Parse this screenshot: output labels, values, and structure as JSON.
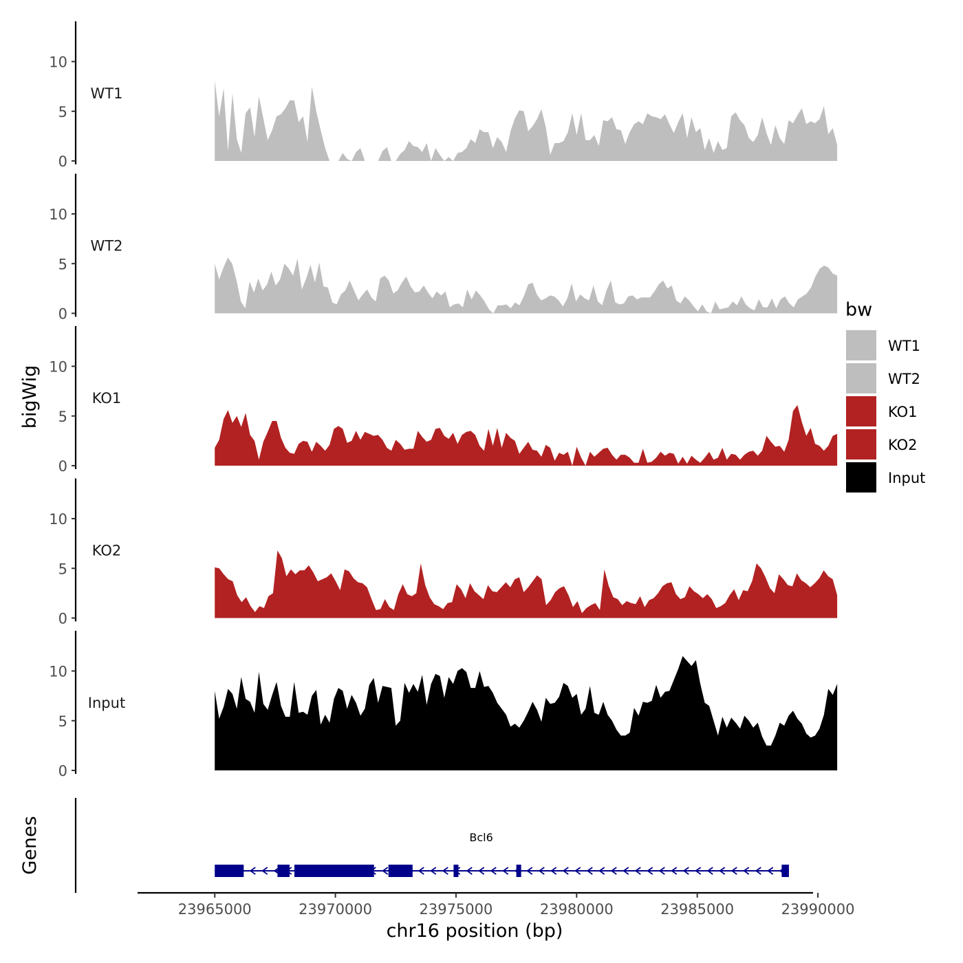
{
  "chart_data": {
    "type": "area",
    "title": "",
    "xlabel": "chr16 position (bp)",
    "ylabel": "bigWig",
    "genes_ylabel": "Genes",
    "xlim": [
      23961800,
      23989800
    ],
    "ylim": [
      0,
      14
    ],
    "x_ticks": [
      23965000,
      23970000,
      23975000,
      23980000,
      23985000,
      23990000
    ],
    "x_tick_labels": [
      "23965000",
      "23970000",
      "23975000",
      "23980000",
      "23985000",
      "23990000"
    ],
    "y_ticks": [
      0,
      5,
      10
    ],
    "y_tick_labels": [
      "0",
      "5",
      "10"
    ],
    "region": [
      23965000,
      23990800
    ],
    "legend": {
      "title": "bw",
      "position": "right",
      "entries": [
        {
          "label": "WT1",
          "color": "#bebebe"
        },
        {
          "label": "WT2",
          "color": "#bebebe"
        },
        {
          "label": "KO1",
          "color": "#b22222"
        },
        {
          "label": "KO2",
          "color": "#b22222"
        },
        {
          "label": "Input",
          "color": "#000000"
        }
      ]
    },
    "series": [
      {
        "name": "WT1",
        "color": "#bebebe",
        "values": [
          8.1,
          4.5,
          7.3,
          1.0,
          6.8,
          2.2,
          0.8,
          4.8,
          5.4,
          2.4,
          6.5,
          4.3,
          2.1,
          3.1,
          4.5,
          4.7,
          5.3,
          6.1,
          6.1,
          3.9,
          4.5,
          1.9,
          7.5,
          5.0,
          3.1,
          1.3,
          0,
          0,
          0,
          0.8,
          0.2,
          0,
          0.9,
          1.3,
          0,
          0,
          0,
          0,
          1.0,
          1.4,
          0,
          0,
          0.7,
          1.1,
          2.0,
          1.5,
          1.4,
          0.9,
          1.8,
          0,
          1.3,
          0.6,
          0,
          0.4,
          0,
          0.8,
          0.9,
          1.3,
          2.2,
          1.8,
          3.2,
          2.9,
          2.9,
          1.3,
          2.4,
          1.9,
          0.9,
          3.0,
          4.3,
          5.1,
          5.0,
          3.0,
          3.5,
          4.2,
          5.2,
          3.4,
          0.6,
          1.8,
          1.8,
          2.0,
          2.9,
          4.8,
          2.6,
          4.8,
          2.1,
          2.1,
          2.6,
          1.5,
          4.1,
          4.0,
          4.4,
          3.2,
          3.1,
          1.7,
          2.9,
          3.7,
          4.0,
          3.7,
          4.8,
          4.5,
          4.4,
          4.2,
          4.7,
          3.7,
          2.8,
          3.9,
          4.8,
          2.3,
          4.4,
          2.9,
          3.3,
          1.1,
          2.3,
          0.8,
          2.0,
          1.1,
          1.3,
          4.5,
          4.9,
          4.1,
          3.6,
          2.3,
          1.9,
          2.6,
          4.4,
          2.8,
          1.6,
          3.6,
          2.3,
          1.7,
          4.1,
          3.8,
          4.6,
          5.3,
          3.7,
          4.0,
          3.8,
          4.2,
          5.5,
          2.7,
          3.3,
          1.6
        ]
      },
      {
        "name": "WT2",
        "color": "#bebebe",
        "values": [
          5.0,
          3.4,
          4.6,
          5.6,
          5.0,
          3.3,
          1.2,
          0.5,
          3.2,
          2.1,
          3.5,
          2.3,
          2.9,
          4.2,
          2.8,
          3.4,
          5.0,
          4.5,
          3.8,
          5.5,
          2.4,
          3.5,
          4.9,
          3.1,
          5.1,
          2.7,
          2.6,
          1.1,
          0.9,
          1.9,
          2.3,
          3.3,
          2.3,
          1.3,
          1.9,
          2.4,
          1.6,
          1.2,
          3.5,
          3.8,
          3.3,
          2.0,
          2.3,
          3.1,
          3.7,
          2.7,
          2.1,
          2.2,
          2.8,
          2.1,
          1.5,
          2.2,
          1.8,
          2.2,
          0.6,
          0.9,
          1.0,
          0.6,
          2.4,
          1.4,
          2.3,
          1.8,
          1.2,
          0.4,
          0,
          0.8,
          0.8,
          0.9,
          0.5,
          1.1,
          0.8,
          1.7,
          2.9,
          3.1,
          1.9,
          1.3,
          1.5,
          1.8,
          1.7,
          1.3,
          0.7,
          1.5,
          3.0,
          1.2,
          1.9,
          1.5,
          1.3,
          2.8,
          1.2,
          0.8,
          2.3,
          3.3,
          1.1,
          0.9,
          1.0,
          1.7,
          1.8,
          1.4,
          1.6,
          1.6,
          1.6,
          2.2,
          2.9,
          3.3,
          2.5,
          2.8,
          1.3,
          1.0,
          1.7,
          1.3,
          0.7,
          0.2,
          0.9,
          0.2,
          0,
          1.2,
          0.4,
          0.5,
          0.6,
          1.2,
          0.8,
          1.7,
          0.9,
          0.5,
          0.3,
          1.4,
          0.6,
          0.6,
          1.5,
          0.5,
          1.4,
          1.7,
          1.0,
          0.6,
          1.4,
          1.7,
          2.0,
          2.6,
          3.7,
          4.5,
          4.8,
          4.6,
          4.0,
          3.8
        ]
      },
      {
        "name": "KO1",
        "color": "#b22222",
        "values": [
          1.8,
          2.6,
          4.7,
          5.6,
          4.3,
          5.0,
          3.9,
          5.3,
          3.1,
          2.5,
          0.6,
          2.4,
          3.4,
          4.5,
          4.5,
          2.8,
          1.8,
          1.3,
          1.2,
          2.2,
          2.5,
          2.4,
          1.4,
          2.4,
          2.0,
          1.5,
          2.1,
          3.7,
          4.0,
          3.7,
          2.3,
          2.5,
          3.5,
          2.6,
          3.4,
          3.2,
          3.0,
          3.1,
          2.6,
          1.8,
          1.5,
          2.6,
          2.2,
          1.6,
          1.7,
          1.7,
          3.5,
          2.9,
          2.4,
          2.6,
          3.7,
          3.8,
          3.0,
          2.7,
          3.3,
          2.2,
          3.1,
          3.4,
          3.5,
          3.1,
          2.0,
          1.5,
          3.7,
          2.0,
          3.8,
          1.8,
          3.3,
          2.8,
          2.5,
          1.2,
          1.8,
          2.4,
          1.6,
          1.5,
          0.9,
          2.1,
          1.8,
          0.5,
          1.3,
          1.1,
          1.4,
          0,
          1.9,
          0.8,
          0,
          1.4,
          0.9,
          1.3,
          1.7,
          1.8,
          1.1,
          0.6,
          1.1,
          1.1,
          0.8,
          0.3,
          0.3,
          1.7,
          0.3,
          0.4,
          0.8,
          1.4,
          1.0,
          1.3,
          1.2,
          0.2,
          0.9,
          0.2,
          1.0,
          0.6,
          0.3,
          0.8,
          1.4,
          0.6,
          0.8,
          1.8,
          0.6,
          1.2,
          1.1,
          0.6,
          1.1,
          1.4,
          1.5,
          1.0,
          1.5,
          3.0,
          2.4,
          1.9,
          2.0,
          1.4,
          2.6,
          5.5,
          6.1,
          4.4,
          3.0,
          3.8,
          2.2,
          2.0,
          1.5,
          2.0,
          3.0,
          3.2
        ]
      },
      {
        "name": "KO2",
        "color": "#b22222",
        "values": [
          5.1,
          5.0,
          4.4,
          3.9,
          3.7,
          2.3,
          1.6,
          2.1,
          1.2,
          0.6,
          1.2,
          1.0,
          2.2,
          2.5,
          6.8,
          6.0,
          4.2,
          4.9,
          4.4,
          4.8,
          4.8,
          5.3,
          4.6,
          3.7,
          3.9,
          4.1,
          4.5,
          3.7,
          2.8,
          4.9,
          4.7,
          4.0,
          3.6,
          3.5,
          3.1,
          1.9,
          0.8,
          0.9,
          1.9,
          1.1,
          0.8,
          2.4,
          3.4,
          2.4,
          2.2,
          2.5,
          5.5,
          3.3,
          2.1,
          1.4,
          1.2,
          0.9,
          1.5,
          1.6,
          3.4,
          2.9,
          2.0,
          3.5,
          2.7,
          2.3,
          1.9,
          3.3,
          2.7,
          2.6,
          3.1,
          3.6,
          3.1,
          3.9,
          4.1,
          2.6,
          3.1,
          3.7,
          4.3,
          3.9,
          1.3,
          1.8,
          2.6,
          3.0,
          3.2,
          2.3,
          1.1,
          1.7,
          0.5,
          1.0,
          1.3,
          1.5,
          0.8,
          4.9,
          3.2,
          2.1,
          1.9,
          1.3,
          1.7,
          1.5,
          1.4,
          2.2,
          1.1,
          1.8,
          2.0,
          2.5,
          3.2,
          3.5,
          3.6,
          2.4,
          1.9,
          2.1,
          3.2,
          2.7,
          2.4,
          2.0,
          2.4,
          1.9,
          1.0,
          1.2,
          1.5,
          2.3,
          2.9,
          1.8,
          2.8,
          2.7,
          3.7,
          5.5,
          5.0,
          4.1,
          3.0,
          2.5,
          4.4,
          3.9,
          3.3,
          3.2,
          4.5,
          3.8,
          3.5,
          3.1,
          3.5,
          4.0,
          4.8,
          4.2,
          3.9,
          2.3
        ]
      },
      {
        "name": "Input",
        "color": "#000000",
        "values": [
          8.0,
          5.2,
          6.4,
          8.2,
          7.7,
          6.2,
          9.4,
          7.2,
          6.9,
          5.8,
          9.9,
          6.7,
          6.1,
          7.6,
          8.9,
          6.5,
          5.4,
          5.4,
          8.9,
          5.8,
          5.9,
          5.6,
          7.5,
          8.1,
          4.6,
          5.6,
          4.8,
          7.2,
          8.3,
          8.0,
          6.2,
          7.6,
          6.8,
          5.5,
          6.2,
          8.6,
          9.3,
          6.8,
          8.5,
          8.4,
          8.3,
          4.5,
          5.0,
          8.8,
          7.8,
          8.7,
          7.9,
          9.6,
          6.6,
          8.7,
          9.7,
          9.5,
          7.3,
          9.4,
          8.7,
          10.0,
          10.3,
          9.9,
          8.3,
          8.3,
          10.0,
          8.4,
          8.5,
          7.8,
          6.8,
          6.2,
          5.6,
          4.4,
          4.7,
          4.3,
          5.0,
          5.9,
          6.9,
          6.1,
          4.9,
          7.3,
          6.7,
          6.8,
          7.4,
          8.8,
          8.5,
          7.3,
          7.7,
          5.6,
          6.2,
          8.5,
          5.8,
          5.6,
          6.9,
          5.6,
          5.0,
          4.1,
          3.5,
          3.5,
          3.8,
          6.3,
          5.5,
          6.9,
          6.8,
          7.0,
          8.6,
          7.3,
          7.9,
          8.0,
          9.1,
          10.2,
          11.5,
          11.0,
          10.5,
          11.1,
          8.7,
          6.8,
          6.5,
          5.0,
          3.5,
          5.4,
          4.3,
          5.3,
          4.8,
          4.2,
          5.5,
          5.0,
          4.3,
          4.8,
          3.4,
          2.5,
          2.5,
          3.5,
          4.8,
          4.5,
          5.5,
          6.0,
          5.2,
          4.7,
          3.7,
          3.3,
          3.5,
          4.2,
          5.6,
          8.2,
          7.6,
          8.7
        ]
      }
    ],
    "genes": {
      "name": "Bcl6",
      "strand": "-",
      "start": 23965000,
      "end": 23988800,
      "color": "#00008b",
      "exons": [
        [
          23965000,
          23966200
        ],
        [
          23967600,
          23968100
        ],
        [
          23968300,
          23971600
        ],
        [
          23972200,
          23973200
        ],
        [
          23974900,
          23975100
        ],
        [
          23977500,
          23977700
        ],
        [
          23988500,
          23988800
        ]
      ]
    }
  }
}
